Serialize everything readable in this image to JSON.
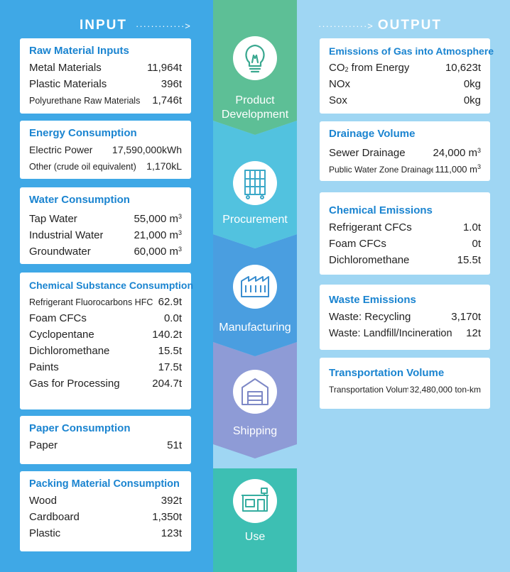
{
  "input": {
    "header": "INPUT",
    "arrow": "·············>",
    "cards": [
      {
        "title": "Raw Material Inputs",
        "rows": [
          {
            "label": "Metal Materials",
            "value": "11,964t"
          },
          {
            "label": "Plastic Materials",
            "value": "396t"
          },
          {
            "label": "Polyurethane Raw Materials",
            "value": "1,746t"
          }
        ]
      },
      {
        "title": "Energy Consumption",
        "rows": [
          {
            "label": "Electric Power",
            "value": "17,590,000kWh"
          },
          {
            "label": "Other (crude oil equivalent)",
            "value": "1,170kL"
          }
        ]
      },
      {
        "title": "Water Consumption",
        "rows": [
          {
            "label": "Tap Water",
            "value": "55,000 m",
            "unit_sup": "3"
          },
          {
            "label": "Industrial Water",
            "value": "21,000 m",
            "unit_sup": "3"
          },
          {
            "label": "Groundwater",
            "value": "60,000 m",
            "unit_sup": "3"
          }
        ]
      },
      {
        "title": "Chemical Substance Consumption",
        "rows": [
          {
            "label": "Refrigerant Fluorocarbons HFC",
            "value": "62.9t"
          },
          {
            "label": "Foam CFCs",
            "value": "0.0t"
          },
          {
            "label": "Cyclopentane",
            "value": "140.2t"
          },
          {
            "label": "Dichloromethane",
            "value": "15.5t"
          },
          {
            "label": "Paints",
            "value": "17.5t"
          },
          {
            "label": "Gas for Processing",
            "value": "204.7t"
          }
        ]
      },
      {
        "title": "Paper Consumption",
        "rows": [
          {
            "label": "Paper",
            "value": "51t"
          }
        ]
      },
      {
        "title": "Packing Material Consumption",
        "rows": [
          {
            "label": "Wood",
            "value": "392t"
          },
          {
            "label": "Cardboard",
            "value": "1,350t"
          },
          {
            "label": "Plastic",
            "value": "123t"
          }
        ]
      }
    ]
  },
  "output": {
    "header": "OUTPUT",
    "arrow": "·············>",
    "cards": [
      {
        "title": "Emissions of Gas into Atmosphere",
        "rows": [
          {
            "label": "CO",
            "label_sub": "2",
            "label_rest": " from Energy",
            "value": "10,623t"
          },
          {
            "label": "NOx",
            "value": "0kg"
          },
          {
            "label": "Sox",
            "value": "0kg"
          }
        ]
      },
      {
        "title": "Drainage Volume",
        "rows": [
          {
            "label": "Sewer Drainage",
            "value": "24,000 m",
            "unit_sup": "3"
          },
          {
            "label": "Public Water Zone Drainage",
            "value": "111,000 m",
            "unit_sup": "3"
          }
        ]
      },
      {
        "title": "Chemical Emissions",
        "rows": [
          {
            "label": "Refrigerant CFCs",
            "value": "1.0t"
          },
          {
            "label": "Foam CFCs",
            "value": "0t"
          },
          {
            "label": "Dichloromethane",
            "value": "15.5t"
          }
        ]
      },
      {
        "title": "Waste Emissions",
        "rows": [
          {
            "label": "Waste: Recycling",
            "value": "3,170t"
          },
          {
            "label": "Waste: Landfill/Incineration",
            "value": "12t"
          }
        ]
      },
      {
        "title": "Transportation Volume",
        "rows": [
          {
            "label": "Transportation Volume",
            "value": "32,480,000 ton-km"
          }
        ]
      }
    ]
  },
  "stages": [
    {
      "line1": "Product",
      "line2": "Development",
      "icon": "lightbulb-icon",
      "color": "#5dbf96"
    },
    {
      "line1": "Procurement",
      "icon": "shelf-cart-icon",
      "color": "#52c2df"
    },
    {
      "line1": "Manufacturing",
      "icon": "factory-icon",
      "color": "#4a9ee0"
    },
    {
      "line1": "Shipping",
      "icon": "warehouse-icon",
      "color": "#8e9bd6"
    },
    {
      "line1": "Use",
      "icon": "store-icon",
      "color": "#3dbfb3"
    }
  ],
  "colors": {
    "input_bg": "#3fa8e6",
    "output_bg": "#9fd6f3",
    "title": "#1a84d0"
  }
}
